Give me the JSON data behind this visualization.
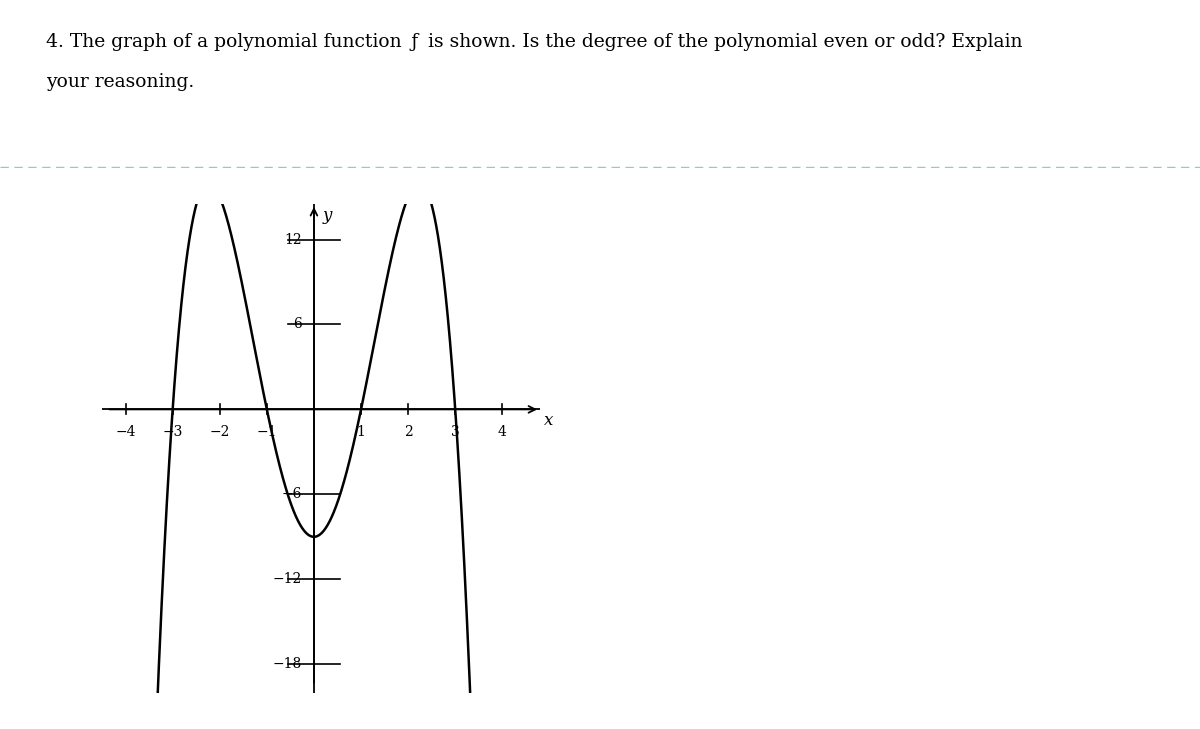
{
  "xlabel": "x",
  "ylabel": "y",
  "xlim": [
    -4.5,
    4.8
  ],
  "ylim": [
    -20,
    14.5
  ],
  "xticks": [
    -4,
    -3,
    -2,
    -1,
    1,
    2,
    3,
    4
  ],
  "yticks": [
    -18,
    -12,
    -6,
    6,
    12
  ],
  "background_color": "#ffffff",
  "curve_color": "#000000",
  "axis_color": "#000000",
  "dashed_line_color": "#90c8d8",
  "question_line1": "4. The graph of a polynomial function  ƒ  is shown. Is the degree of the polynomial even or odd? Explain",
  "question_line2": "your reasoning.",
  "poly_coeffs": [
    -1,
    0,
    10,
    0,
    -9
  ],
  "tick_size_x": 0.35,
  "tick_size_y": 0.12,
  "fontsize_tick": 10,
  "fontsize_label": 12,
  "fontsize_question": 13.5,
  "linewidth_curve": 1.8,
  "linewidth_axis": 1.3
}
